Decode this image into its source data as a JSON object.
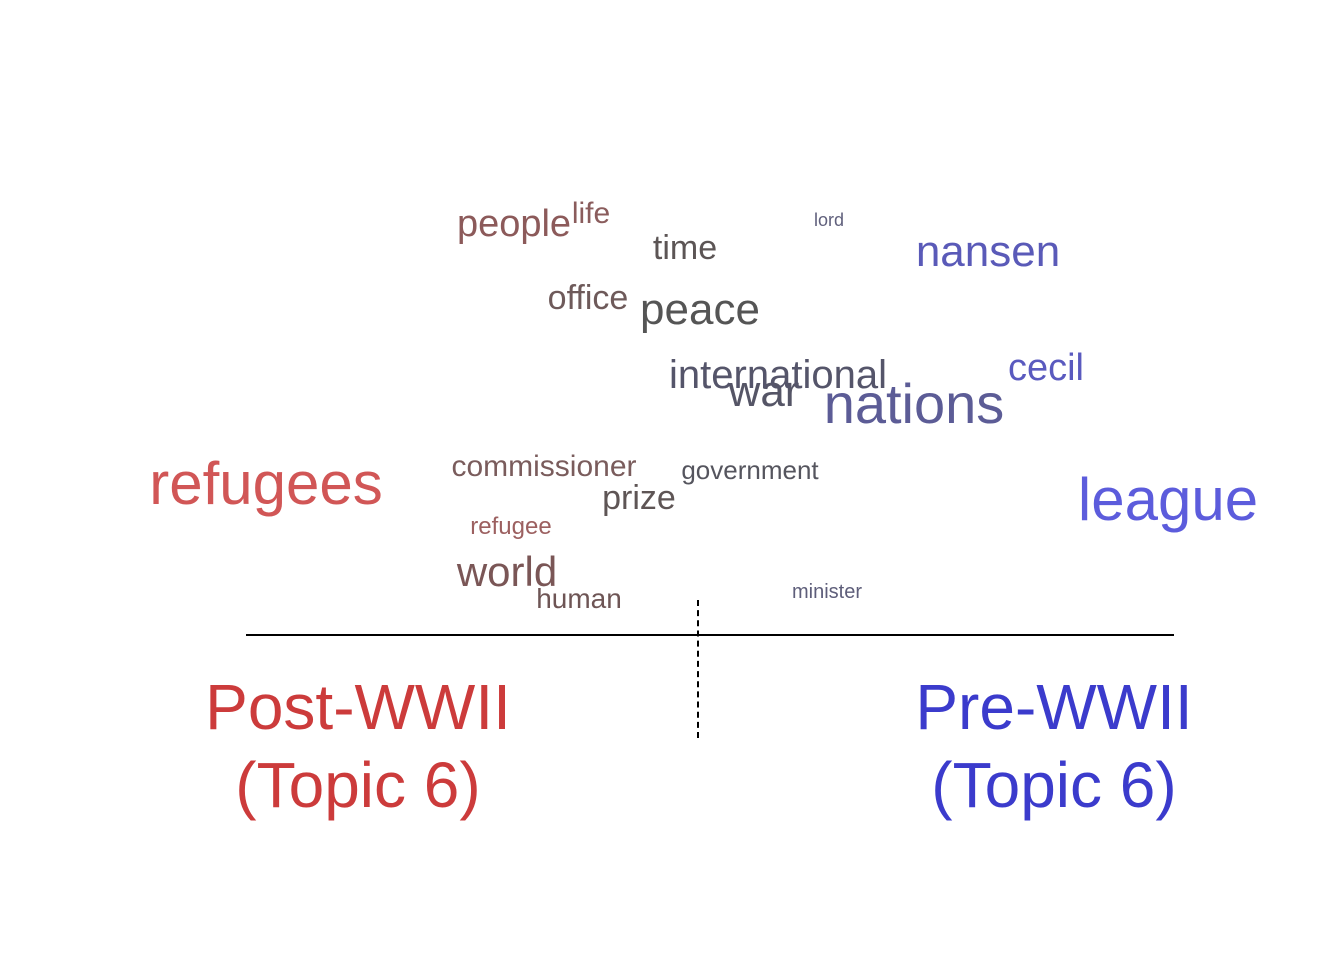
{
  "chart_data": {
    "type": "wordcloud",
    "poles": [
      {
        "label": "Post-WWII",
        "sublabel": "(Topic 6)",
        "color": "#cc3b3b"
      },
      {
        "label": "Pre-WWII",
        "sublabel": "(Topic 6)",
        "color": "#3b3bcc"
      }
    ],
    "words": [
      {
        "text": "refugees",
        "color": "#d15656",
        "weight": 60
      },
      {
        "text": "league",
        "color": "#5c5cdc",
        "weight": 60
      },
      {
        "text": "nations",
        "color": "#5c5c96",
        "weight": 56
      },
      {
        "text": "nansen",
        "color": "#5a5ab8",
        "weight": 44
      },
      {
        "text": "peace",
        "color": "#555555",
        "weight": 44
      },
      {
        "text": "war",
        "color": "#555566",
        "weight": 44
      },
      {
        "text": "world",
        "color": "#7a5656",
        "weight": 42
      },
      {
        "text": "international",
        "color": "#55556a",
        "weight": 40
      },
      {
        "text": "cecil",
        "color": "#5a5abf",
        "weight": 38
      },
      {
        "text": "people",
        "color": "#8c5a5a",
        "weight": 38
      },
      {
        "text": "time",
        "color": "#5c5555",
        "weight": 34
      },
      {
        "text": "office",
        "color": "#6e5a5a",
        "weight": 34
      },
      {
        "text": "prize",
        "color": "#5e5555",
        "weight": 34
      },
      {
        "text": "life",
        "color": "#8a5c5c",
        "weight": 30
      },
      {
        "text": "commissioner",
        "color": "#7a5c5c",
        "weight": 30
      },
      {
        "text": "human",
        "color": "#6e5555",
        "weight": 28
      },
      {
        "text": "government",
        "color": "#55555e",
        "weight": 26
      },
      {
        "text": "refugee",
        "color": "#9c6060",
        "weight": 24
      },
      {
        "text": "minister",
        "color": "#5e5e7a",
        "weight": 20
      },
      {
        "text": "lord",
        "color": "#60607c",
        "weight": 18
      }
    ]
  }
}
